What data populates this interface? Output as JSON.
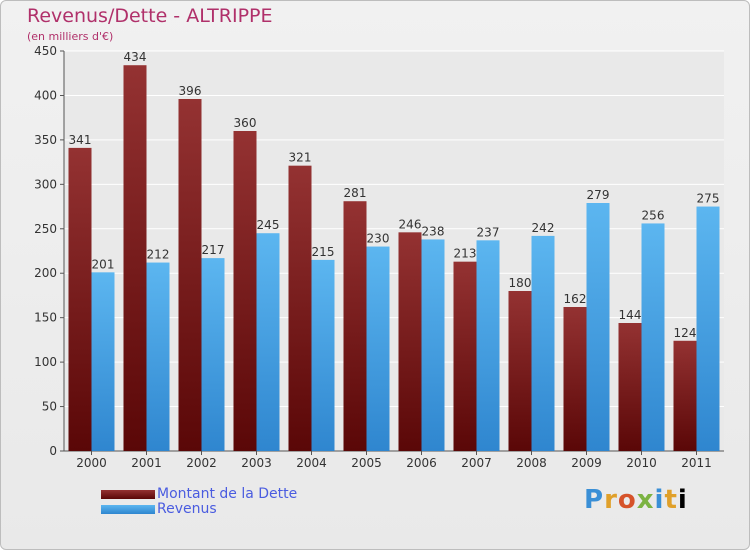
{
  "chart_data": {
    "type": "bar",
    "title": "Revenus/Dette - ALTRIPPE",
    "subtitle": "(en milliers d'€)",
    "categories": [
      "2000",
      "2001",
      "2002",
      "2003",
      "2004",
      "2005",
      "2006",
      "2007",
      "2008",
      "2009",
      "2010",
      "2011"
    ],
    "series": [
      {
        "name": "Montant de la Dette",
        "color": "#7a1a1a",
        "values": [
          341,
          434,
          396,
          360,
          321,
          281,
          246,
          213,
          180,
          162,
          144,
          124
        ]
      },
      {
        "name": "Revenus",
        "color": "#4aa3e8",
        "values": [
          201,
          212,
          217,
          245,
          215,
          230,
          238,
          237,
          242,
          279,
          256,
          275
        ]
      }
    ],
    "ylim": [
      0,
      450
    ],
    "yticks": [
      0,
      50,
      100,
      150,
      200,
      250,
      300,
      350,
      400,
      450
    ],
    "grid": true,
    "legend_position": "bottom-left"
  },
  "logo_text": [
    "P",
    "r",
    "o",
    "x",
    "i",
    "t",
    "i"
  ]
}
